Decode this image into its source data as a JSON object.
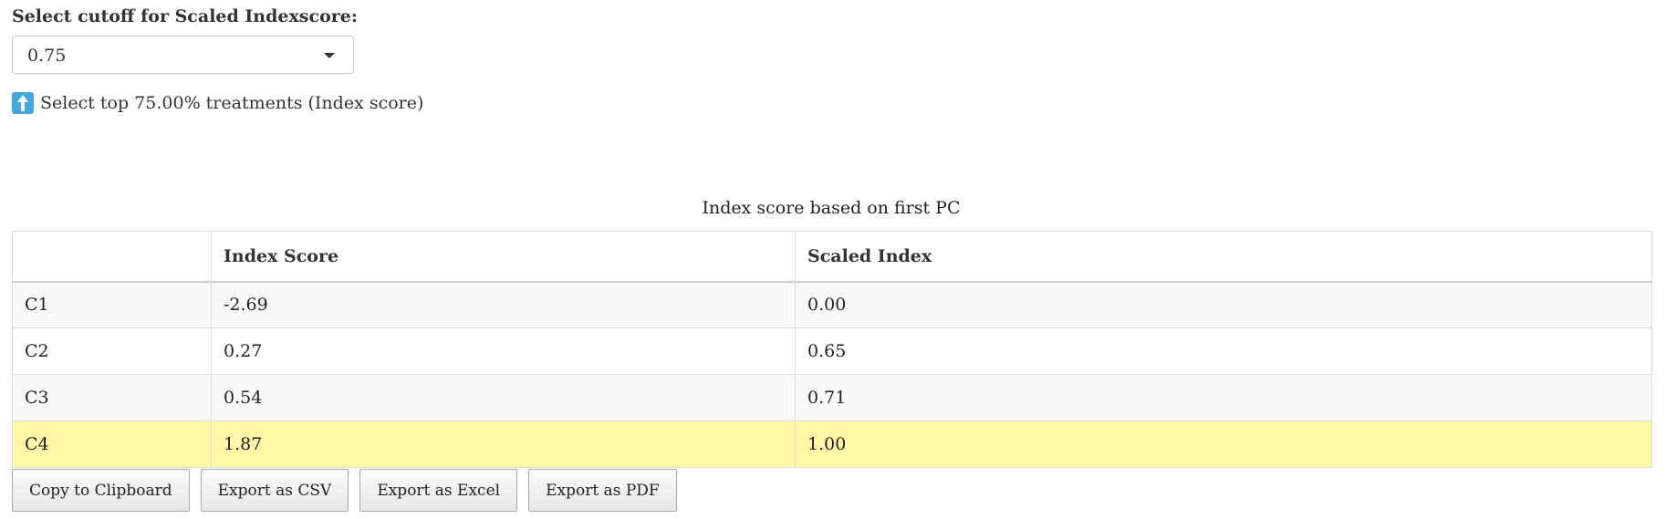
{
  "cutoff": {
    "label": "Select cutoff for Scaled Indexscore:",
    "selected_value": "0.75"
  },
  "info": {
    "icon": "up-arrow-icon",
    "text": "Select top 75.00% treatments (Index score)"
  },
  "table": {
    "caption": "Index score based on first PC",
    "headers": [
      "",
      "Index Score",
      "Scaled Index"
    ],
    "rows": [
      {
        "name": "C1",
        "index_score": "-2.69",
        "scaled_index": "0.00",
        "highlighted": false
      },
      {
        "name": "C2",
        "index_score": "0.27",
        "scaled_index": "0.65",
        "highlighted": false
      },
      {
        "name": "C3",
        "index_score": "0.54",
        "scaled_index": "0.71",
        "highlighted": false
      },
      {
        "name": "C4",
        "index_score": "1.87",
        "scaled_index": "1.00",
        "highlighted": true
      }
    ],
    "highlight_color": "#fff6a8"
  },
  "buttons": {
    "copy": "Copy to Clipboard",
    "csv": "Export as CSV",
    "excel": "Export as Excel",
    "pdf": "Export as PDF"
  }
}
